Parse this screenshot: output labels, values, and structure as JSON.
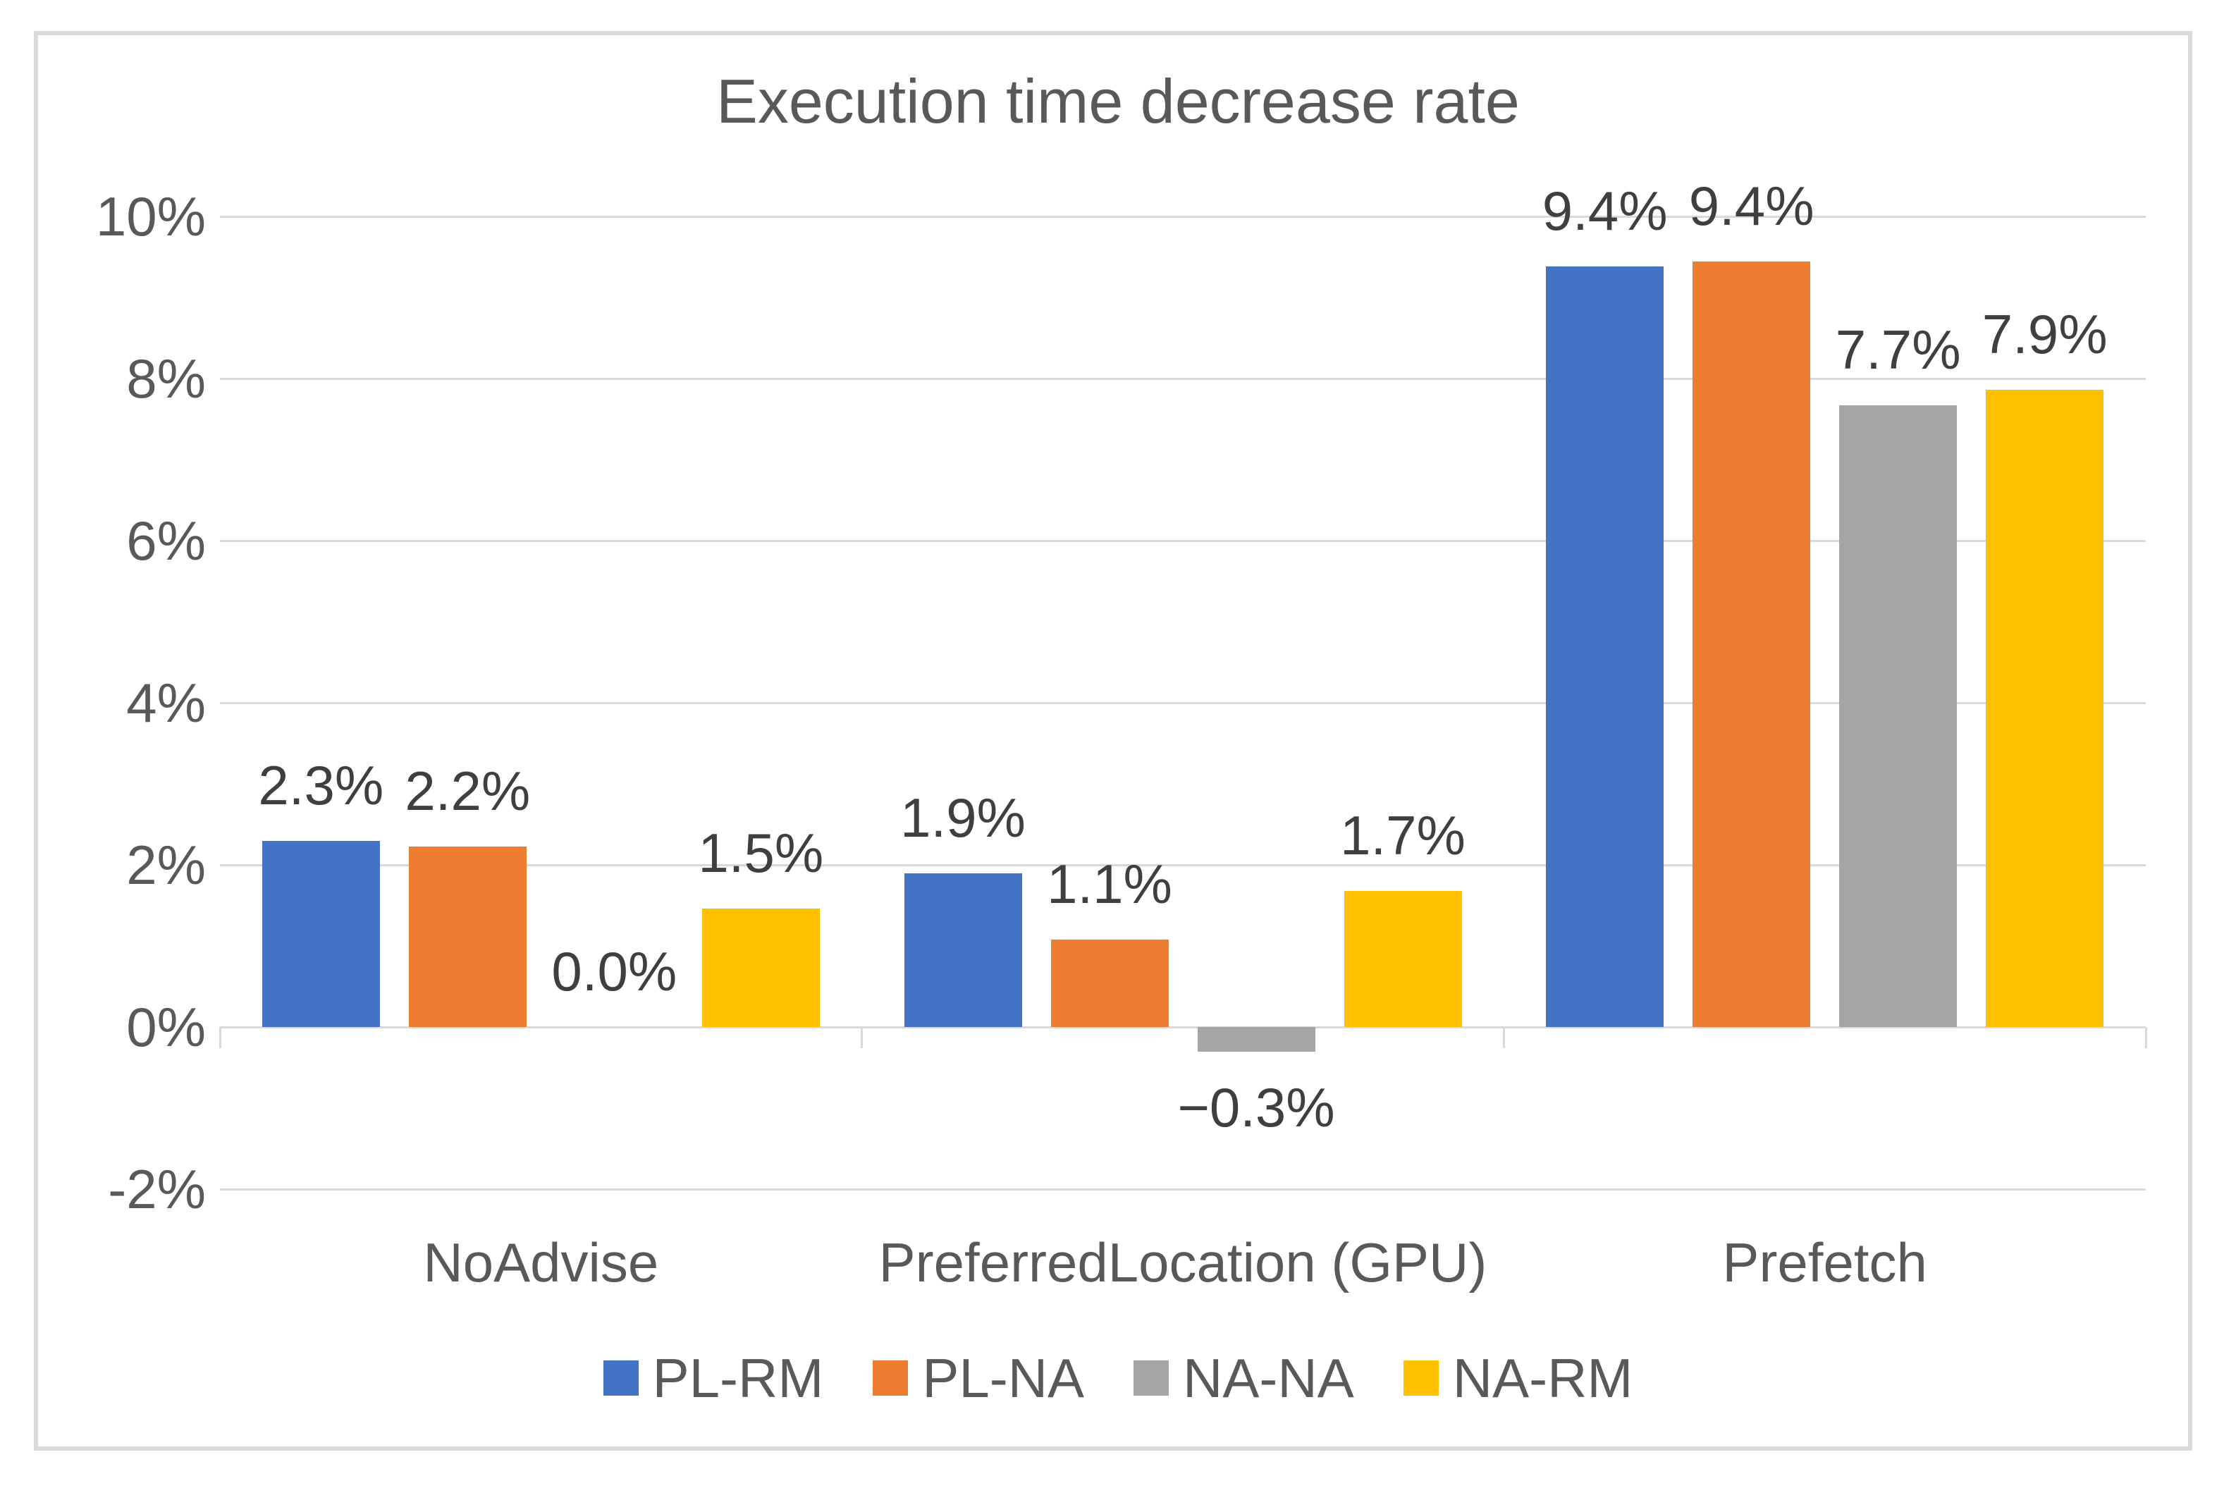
{
  "title": "Execution time decrease rate",
  "colors": {
    "series_blue": "#4472C4",
    "series_orange": "#ED7D31",
    "series_gray": "#A5A5A5",
    "series_yellow": "#FFC000",
    "gridline": "#D9D9D9",
    "chart_border": "#D9D9D9",
    "axis_text": "#595959",
    "title_text": "#595959",
    "data_label_text": "#3F3F3F"
  },
  "chart_data": {
    "type": "bar",
    "title": "Execution time decrease rate",
    "categories": [
      "NoAdvise",
      "PreferredLocation (GPU)",
      "Prefetch"
    ],
    "series": [
      {
        "name": "PL-RM",
        "color": "#4472C4",
        "values": [
          2.3,
          1.9,
          9.38
        ],
        "labels": [
          "2.3%",
          "1.9%",
          "9.4%"
        ]
      },
      {
        "name": "PL-NA",
        "color": "#ED7D31",
        "values": [
          2.23,
          1.08,
          9.44
        ],
        "labels": [
          "2.2%",
          "1.1%",
          "9.4%"
        ]
      },
      {
        "name": "NA-NA",
        "color": "#A5A5A5",
        "values": [
          0.0,
          -0.3,
          7.67
        ],
        "labels": [
          "0.0%",
          "−0.3%",
          "7.7%"
        ]
      },
      {
        "name": "NA-RM",
        "color": "#FFC000",
        "values": [
          1.46,
          1.68,
          7.86
        ],
        "labels": [
          "1.5%",
          "1.7%",
          "7.9%"
        ]
      }
    ],
    "y_axis": {
      "tick_labels": [
        "10%",
        "8%",
        "6%",
        "4%",
        "2%",
        "0%",
        "-2%"
      ],
      "tick_values": [
        10,
        8,
        6,
        4,
        2,
        0,
        -2
      ],
      "min": -2,
      "max": 10,
      "unit": "%"
    },
    "xlabel": "",
    "ylabel": "",
    "grid": true,
    "legend_position": "bottom",
    "data_labels_shown": true
  }
}
